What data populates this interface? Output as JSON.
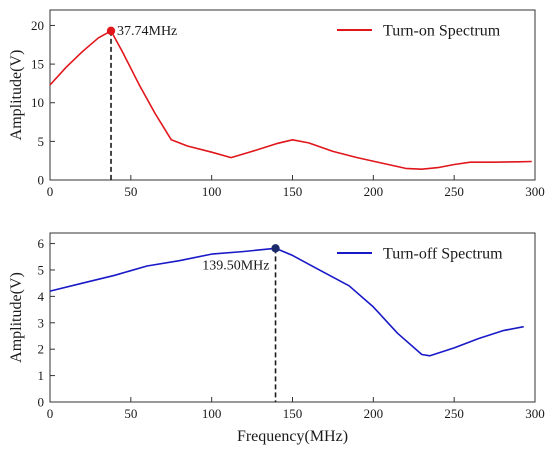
{
  "chart_data": [
    {
      "type": "line",
      "ylabel": "Amplitude(V)",
      "xlabel": "",
      "xlim": [
        0,
        300
      ],
      "ylim": [
        0,
        22
      ],
      "xticks": [
        0,
        50,
        100,
        150,
        200,
        250,
        300
      ],
      "yticks": [
        0,
        5,
        10,
        15,
        20
      ],
      "legend_placement": "top-right",
      "grid": false,
      "series": [
        {
          "name": "Turn-on Spectrum",
          "color": "#e0161b",
          "x": [
            0,
            10,
            20,
            30,
            37.74,
            45,
            55,
            65,
            75,
            85,
            100,
            112,
            125,
            140,
            150,
            160,
            175,
            190,
            205,
            220,
            230,
            240,
            250,
            260,
            275,
            290,
            298
          ],
          "y": [
            12.3,
            14.6,
            16.6,
            18.4,
            19.3,
            16.5,
            12.4,
            8.6,
            5.2,
            4.4,
            3.6,
            2.9,
            3.7,
            4.7,
            5.2,
            4.8,
            3.7,
            2.9,
            2.2,
            1.5,
            1.4,
            1.6,
            2.0,
            2.3,
            2.3,
            2.35,
            2.4
          ]
        }
      ],
      "peak": {
        "x": 37.74,
        "y": 19.3,
        "label": "37.74MHz"
      }
    },
    {
      "type": "line",
      "ylabel": "Amplitude(V)",
      "xlabel": "Frequency(MHz)",
      "xlim": [
        0,
        300
      ],
      "ylim": [
        0,
        6.4
      ],
      "xticks": [
        0,
        50,
        100,
        150,
        200,
        250,
        300
      ],
      "yticks": [
        0,
        1,
        2,
        3,
        4,
        5,
        6
      ],
      "legend_placement": "top-right",
      "grid": false,
      "series": [
        {
          "name": "Turn-off Spectrum",
          "color": "#1919c8",
          "x": [
            0,
            20,
            40,
            60,
            80,
            100,
            120,
            139.5,
            150,
            165,
            185,
            200,
            215,
            230,
            235,
            250,
            265,
            280,
            293
          ],
          "y": [
            4.2,
            4.5,
            4.8,
            5.15,
            5.35,
            5.6,
            5.7,
            5.82,
            5.55,
            5.05,
            4.4,
            3.6,
            2.6,
            1.8,
            1.75,
            2.05,
            2.4,
            2.7,
            2.85
          ]
        }
      ],
      "peak": {
        "x": 139.5,
        "y": 5.82,
        "label": "139.50MHz"
      }
    }
  ]
}
